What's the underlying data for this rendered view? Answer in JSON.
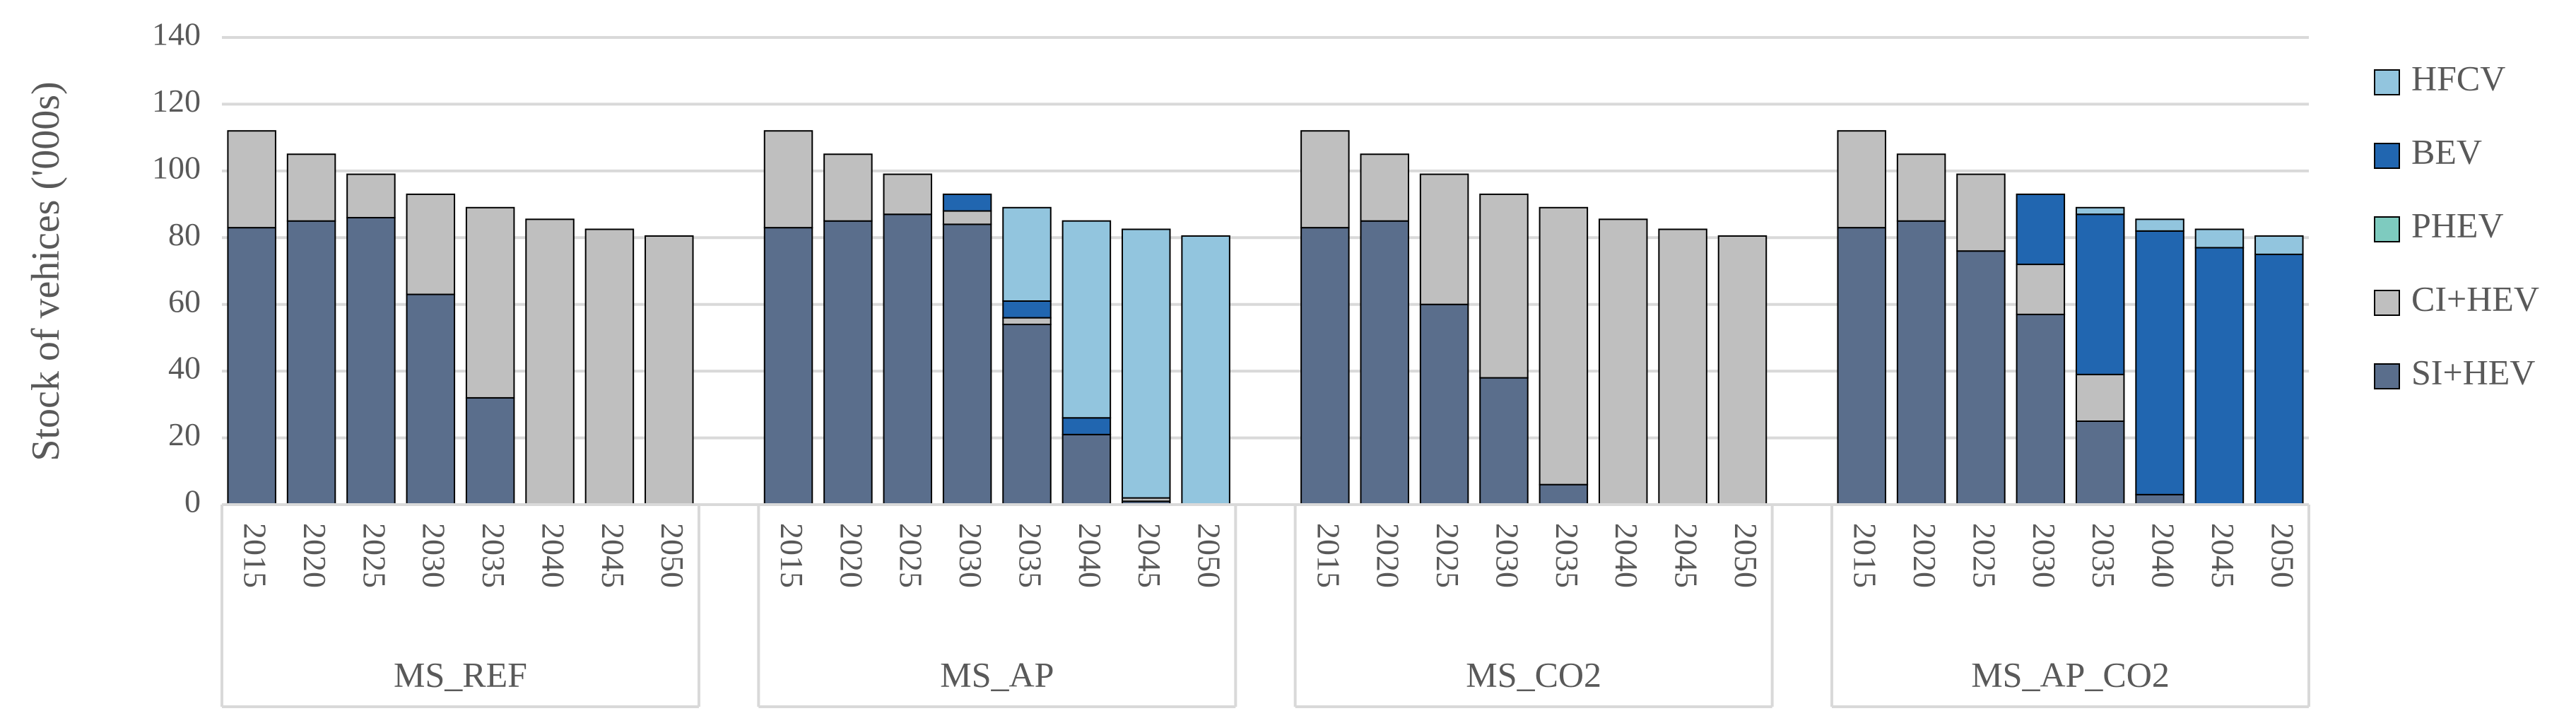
{
  "chart_data": {
    "type": "stacked_bar",
    "y_label": "Stock of vehices ('000s)",
    "groups": [
      "MS_REF",
      "MS_AP",
      "MS_CO2",
      "MS_AP_CO2"
    ],
    "categories": [
      "2015",
      "2020",
      "2025",
      "2030",
      "2035",
      "2040",
      "2045",
      "2050",
      "2015",
      "2020",
      "2025",
      "2030",
      "2035",
      "2040",
      "2045",
      "2050",
      "2015",
      "2020",
      "2025",
      "2030",
      "2035",
      "2040",
      "2045",
      "2050",
      "2015",
      "2020",
      "2025",
      "2030",
      "2035",
      "2040",
      "2045",
      "2050"
    ],
    "series": [
      {
        "name": "SI+HEV",
        "color": "#5a6e8c",
        "values": [
          83,
          85,
          86,
          63,
          32,
          0,
          0,
          0,
          83,
          85,
          87,
          84,
          54,
          21,
          1,
          0,
          83,
          85,
          60,
          38,
          6,
          0,
          0,
          0,
          83,
          85,
          76,
          57,
          25,
          3,
          0,
          0
        ]
      },
      {
        "name": "CI+HEV",
        "color": "#bfbfbf",
        "values": [
          29,
          20,
          13,
          30,
          57,
          85.5,
          82.5,
          80.5,
          29,
          20,
          12,
          4,
          2,
          0,
          1,
          0,
          29,
          20,
          39,
          55,
          83,
          85.5,
          82.5,
          80.5,
          29,
          20,
          23,
          15,
          14,
          0,
          0,
          0
        ]
      },
      {
        "name": "PHEV",
        "color": "#7ecbbf",
        "values": [
          0,
          0,
          0,
          0,
          0,
          0,
          0,
          0,
          0,
          0,
          0,
          0,
          0,
          0,
          0,
          0,
          0,
          0,
          0,
          0,
          0,
          0,
          0,
          0,
          0,
          0,
          0,
          0,
          0,
          0,
          0,
          0
        ]
      },
      {
        "name": "BEV",
        "color": "#2166b0",
        "values": [
          0,
          0,
          0,
          0,
          0,
          0,
          0,
          0,
          0,
          0,
          0,
          5,
          5,
          5,
          0,
          0,
          0,
          0,
          0,
          0,
          0,
          0,
          0,
          0,
          0,
          0,
          0,
          21,
          48,
          79,
          77,
          75
        ]
      },
      {
        "name": "HFCV",
        "color": "#92c5de",
        "values": [
          0,
          0,
          0,
          0,
          0,
          0,
          0,
          0,
          0,
          0,
          0,
          0,
          28,
          59,
          80.5,
          80.5,
          0,
          0,
          0,
          0,
          0,
          0,
          0,
          0,
          0,
          0,
          0,
          0,
          2,
          3.5,
          5.5,
          5.5
        ]
      }
    ],
    "ylim": [
      0,
      140
    ],
    "yticks": [
      0,
      20,
      40,
      60,
      80,
      100,
      120,
      140
    ],
    "grid": true,
    "legend": "right"
  }
}
